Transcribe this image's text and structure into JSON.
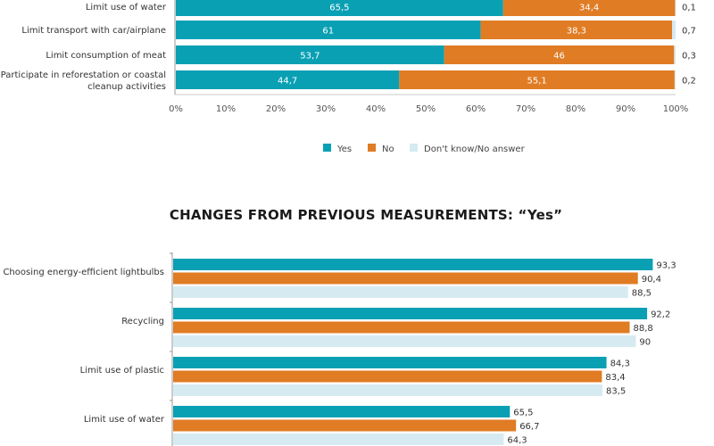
{
  "colors": {
    "yes": "#0aa0b4",
    "no": "#e07c24",
    "dk": "#d6eaf2"
  },
  "chart_data": [
    {
      "type": "bar",
      "orientation": "horizontal",
      "stacked": true,
      "xlim": [
        0,
        100
      ],
      "ticks": [
        "0%",
        "10%",
        "20%",
        "30%",
        "40%",
        "50%",
        "60%",
        "70%",
        "80%",
        "90%",
        "100%"
      ],
      "categories": [
        [
          "Limit use of water"
        ],
        [
          "Limit transport with car/airplane"
        ],
        [
          "Limit consumption of meat"
        ],
        [
          "Participate in reforestation or coastal",
          "cleanup activities"
        ]
      ],
      "series": [
        {
          "name": "Yes",
          "values": [
            65.5,
            61,
            53.7,
            44.7
          ],
          "labels": [
            "65,5",
            "61",
            "53,7",
            "44,7"
          ]
        },
        {
          "name": "No",
          "values": [
            34.4,
            38.3,
            46,
            55.1
          ],
          "labels": [
            "34,4",
            "38,3",
            "46",
            "55,1"
          ]
        },
        {
          "name": "Don't know/No answer",
          "values": [
            0.1,
            0.7,
            0.3,
            0.2
          ],
          "labels": [
            "0,1",
            "0,7",
            "0,3",
            "0,2"
          ]
        }
      ],
      "legend": [
        "Yes",
        "No",
        "Don't know/No answer"
      ],
      "legend_position": "bottom"
    },
    {
      "type": "bar",
      "orientation": "horizontal",
      "stacked": false,
      "title": "CHANGES FROM PREVIOUS MEASUREMENTS: “Yes”",
      "xlim": [
        0,
        100
      ],
      "categories": [
        "Choosing energy-efficient lightbulbs",
        "Recycling",
        "Limit use of plastic",
        "Limit use of water"
      ],
      "series": [
        {
          "values": [
            93.3,
            92.2,
            84.3,
            65.5
          ],
          "labels": [
            "93,3",
            "92,2",
            "84,3",
            "65,5"
          ]
        },
        {
          "values": [
            90.4,
            88.8,
            83.4,
            66.7
          ],
          "labels": [
            "90,4",
            "88,8",
            "83,4",
            "66,7"
          ]
        },
        {
          "values": [
            88.5,
            90,
            83.5,
            64.3
          ],
          "labels": [
            "88,5",
            "90",
            "83,5",
            "64,3"
          ]
        }
      ]
    }
  ]
}
